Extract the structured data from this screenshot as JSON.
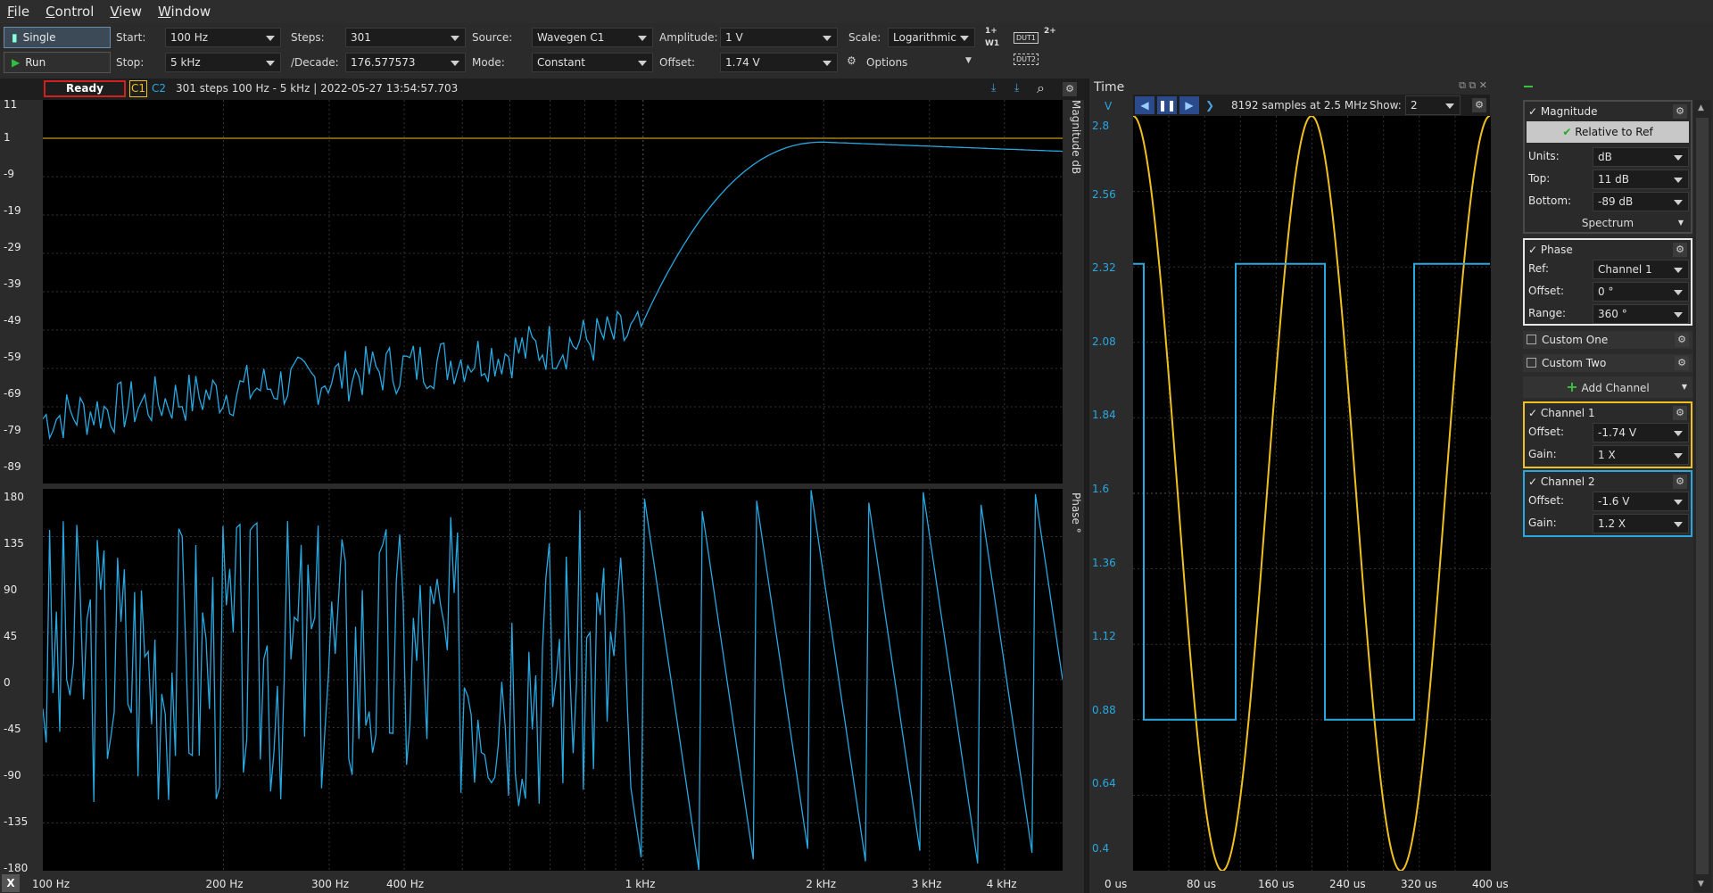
{
  "menu": [
    "File",
    "Control",
    "View",
    "Window"
  ],
  "toolbar": {
    "single": "Single",
    "run": "Run",
    "start_label": "Start:",
    "start": "100 Hz",
    "stop_label": "Stop:",
    "stop": "5 kHz",
    "steps_label": "Steps:",
    "steps": "301",
    "decade_label": "/Decade:",
    "decade": "176.577573",
    "source_label": "Source:",
    "source": "Wavegen C1",
    "mode_label": "Mode:",
    "mode": "Constant",
    "amp_label": "Amplitude:",
    "amp": "1 V",
    "offset_label": "Offset:",
    "offset": "1.74 V",
    "scale_label": "Scale:",
    "scale": "Logarithmic",
    "options": "Options",
    "dut1": "DUT1",
    "dut2": "DUT2",
    "w1": "W1",
    "p1": "1+",
    "p2": "2+"
  },
  "status": {
    "state": "Ready",
    "c1": "C1",
    "c2": "C2",
    "info": "301 steps  100 Hz - 5 kHz | 2022-05-27 13:54:57.703"
  },
  "mag_axis": {
    "ticks": [
      "11",
      "1",
      "-9",
      "-19",
      "-29",
      "-39",
      "-49",
      "-59",
      "-69",
      "-79",
      "-89"
    ],
    "title": "Magnitude  dB"
  },
  "phase_axis": {
    "ticks": [
      "180",
      "135",
      "90",
      "45",
      "0",
      "-45",
      "-90",
      "-135",
      "-180"
    ],
    "title": "Phase  °"
  },
  "freq_axis": [
    "100 Hz",
    "200 Hz",
    "300 Hz",
    "400 Hz",
    "1 kHz",
    "2 kHz",
    "3 kHz",
    "4 kHz"
  ],
  "time_panel": {
    "title": "Time",
    "unit": "V",
    "samples": "8192 samples at 2.5 MHz",
    "show_label": "Show:",
    "show": "2",
    "v_ticks": [
      "2.8",
      "2.56",
      "2.32",
      "2.08",
      "1.84",
      "1.6",
      "1.36",
      "1.12",
      "0.88",
      "0.64",
      "0.4"
    ],
    "t_ticks": [
      "0 us",
      "80 us",
      "160 us",
      "240 us",
      "320 us",
      "400 us"
    ]
  },
  "side": {
    "magnitude": {
      "title": "Magnitude",
      "relative": "Relative to Ref",
      "units_label": "Units:",
      "units": "dB",
      "top_label": "Top:",
      "top": "11 dB",
      "bottom_label": "Bottom:",
      "bottom": "-89 dB",
      "spectrum": "Spectrum"
    },
    "phase": {
      "title": "Phase",
      "ref_label": "Ref:",
      "ref": "Channel 1",
      "offset_label": "Offset:",
      "offset": "0 °",
      "range_label": "Range:",
      "range": "360 °"
    },
    "custom_one": "Custom One",
    "custom_two": "Custom Two",
    "add_channel": "Add Channel",
    "ch1": {
      "title": "Channel 1",
      "offset_label": "Offset:",
      "offset": "-1.74 V",
      "gain_label": "Gain:",
      "gain": "1 X"
    },
    "ch2": {
      "title": "Channel 2",
      "offset_label": "Offset:",
      "offset": "-1.6 V",
      "gain_label": "Gain:",
      "gain": "1.2 X"
    }
  },
  "colors": {
    "c1": "#f0c020",
    "c2": "#28a8e0"
  },
  "corner": "X"
}
